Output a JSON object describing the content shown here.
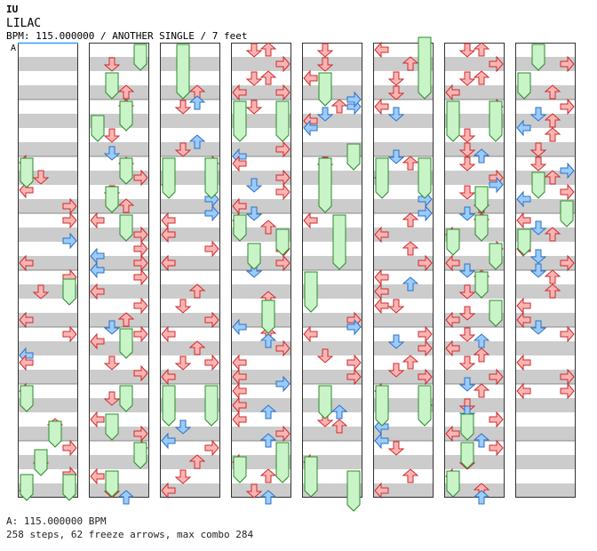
{
  "header": {
    "artist": "IU",
    "title": "LILAC",
    "meta": "BPM: 115.000000 / ANOTHER SINGLE / 7 feet"
  },
  "marker": {
    "label": "A"
  },
  "footer": {
    "bpm_line": "A: 115.000000 BPM",
    "stats_line": "258 steps, 62 freeze arrows, max combo 284"
  },
  "colors": {
    "stripe": "#cccccc",
    "background": "#ffffff",
    "border": "#333333",
    "red_fill": "#ffb4b4",
    "red_stroke": "#cc2b2b",
    "blue_fill": "#99ccff",
    "blue_stroke": "#2f6fbf",
    "freeze_fill": "#c8f4c8",
    "freeze_stroke": "#2c8a2c",
    "marker_line": "#3399ff"
  },
  "icons": {
    "left": "left-arrow-icon",
    "down": "down-arrow-icon",
    "up": "up-arrow-icon",
    "right": "right-arrow-icon",
    "freeze": "freeze-arrow-icon"
  },
  "stats": {
    "steps": 258,
    "freeze_arrows": 62,
    "max_combo": 284
  }
}
